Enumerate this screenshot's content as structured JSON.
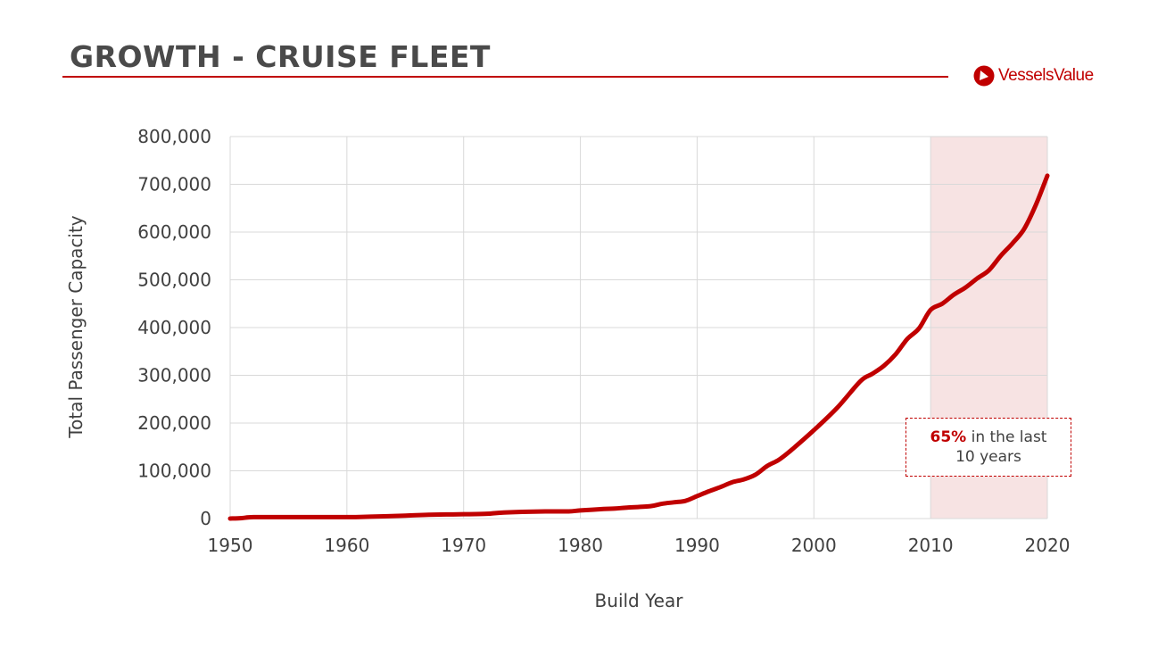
{
  "header": {
    "title": "GROWTH - CRUISE FLEET",
    "logo_text": "VesselsValue"
  },
  "colors": {
    "accent": "#c00000",
    "highlight": "#f7e3e3",
    "grid": "#d9d9d9"
  },
  "annotation": {
    "pct": "65%",
    "text1": " in the last",
    "text2": "10 years"
  },
  "chart_data": {
    "type": "line",
    "title": "GROWTH - CRUISE FLEET",
    "xlabel": "Build Year",
    "ylabel": "Total Passenger Capacity",
    "xlim": [
      1950,
      2020
    ],
    "ylim": [
      0,
      800000
    ],
    "xticks": [
      1950,
      1960,
      1970,
      1980,
      1990,
      2000,
      2010,
      2020
    ],
    "xtick_labels": [
      "1950",
      "1960",
      "1970",
      "1980",
      "1990",
      "2000",
      "2010",
      "2020"
    ],
    "yticks": [
      0,
      100000,
      200000,
      300000,
      400000,
      500000,
      600000,
      700000,
      800000
    ],
    "ytick_labels": [
      "0",
      "100,000",
      "200,000",
      "300,000",
      "400,000",
      "500,000",
      "600,000",
      "700,000",
      "800,000"
    ],
    "grid": true,
    "highlight_range": [
      2010,
      2020
    ],
    "series": [
      {
        "name": "Total Passenger Capacity",
        "x": [
          1950,
          1951,
          1952,
          1955,
          1960,
          1962,
          1965,
          1967,
          1970,
          1972,
          1973,
          1975,
          1977,
          1979,
          1980,
          1982,
          1983,
          1984,
          1986,
          1987,
          1988,
          1989,
          1990,
          1991,
          1992,
          1993,
          1994,
          1995,
          1996,
          1997,
          1998,
          2000,
          2002,
          2004,
          2005,
          2006,
          2007,
          2008,
          2009,
          2010,
          2011,
          2012,
          2013,
          2014,
          2015,
          2016,
          2017,
          2018,
          2019,
          2020
        ],
        "values": [
          0,
          1000,
          3000,
          3000,
          3000,
          4000,
          6000,
          8000,
          9000,
          10000,
          12000,
          14000,
          15000,
          15000,
          17000,
          20000,
          21000,
          23000,
          26000,
          31000,
          34000,
          37000,
          47000,
          57000,
          66000,
          76000,
          82000,
          92000,
          110000,
          123000,
          142000,
          185000,
          232000,
          288000,
          303000,
          320000,
          344000,
          376000,
          398000,
          437000,
          450000,
          469000,
          484000,
          503000,
          520000,
          550000,
          576000,
          606000,
          656000,
          718000
        ]
      }
    ]
  }
}
